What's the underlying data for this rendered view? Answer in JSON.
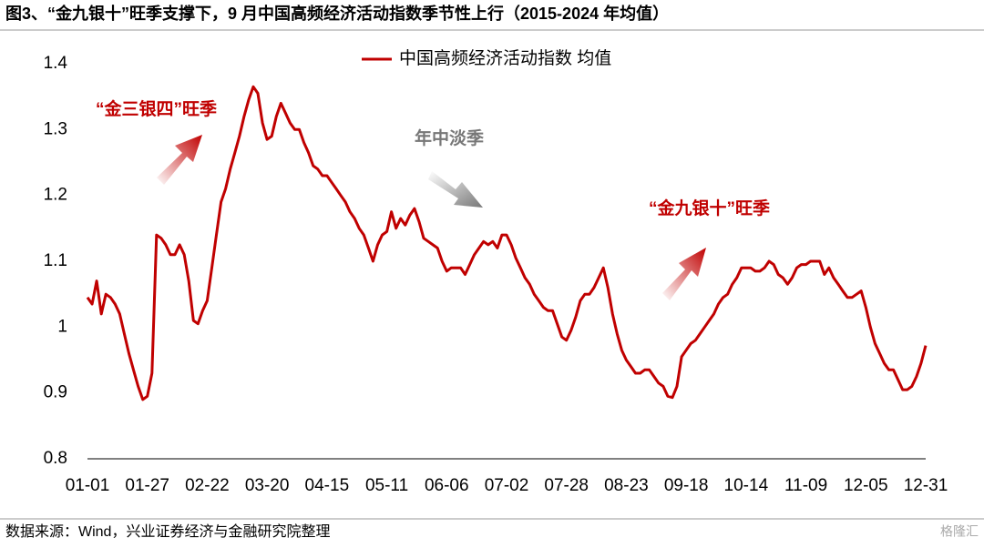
{
  "chart_data": {
    "type": "line",
    "title": "图3、“金九银十”旺季支撑下，9 月中国高频经济活动指数季节性上行（2015-2024 年均值）",
    "source": "数据来源：Wind，兴业证券经济与金融研究院整理",
    "watermark": "格隆汇",
    "annotations": [
      "“金三银四”旺季",
      "年中淡季",
      "“金九银十”旺季"
    ],
    "categories": [
      "01-01",
      null,
      null,
      null,
      null,
      null,
      null,
      null,
      null,
      null,
      null,
      null,
      null,
      "01-27",
      null,
      null,
      null,
      null,
      null,
      null,
      null,
      null,
      null,
      null,
      null,
      null,
      "02-22",
      null,
      null,
      null,
      null,
      null,
      null,
      null,
      null,
      null,
      null,
      null,
      null,
      "03-20",
      null,
      null,
      null,
      null,
      null,
      null,
      null,
      null,
      null,
      null,
      null,
      null,
      "04-15",
      null,
      null,
      null,
      null,
      null,
      null,
      null,
      null,
      null,
      null,
      null,
      null,
      "05-11",
      null,
      null,
      null,
      null,
      null,
      null,
      null,
      null,
      null,
      null,
      null,
      null,
      "06-06",
      null,
      null,
      null,
      null,
      null,
      null,
      null,
      null,
      null,
      null,
      null,
      null,
      "07-02",
      null,
      null,
      null,
      null,
      null,
      null,
      null,
      null,
      null,
      null,
      null,
      null,
      "07-28",
      null,
      null,
      null,
      null,
      null,
      null,
      null,
      null,
      null,
      null,
      null,
      null,
      "08-23",
      null,
      null,
      null,
      null,
      null,
      null,
      null,
      null,
      null,
      null,
      null,
      null,
      "09-18",
      null,
      null,
      null,
      null,
      null,
      null,
      null,
      null,
      null,
      null,
      null,
      null,
      "10-14",
      null,
      null,
      null,
      null,
      null,
      null,
      null,
      null,
      null,
      null,
      null,
      null,
      "11-09",
      null,
      null,
      null,
      null,
      null,
      null,
      null,
      null,
      null,
      null,
      null,
      null,
      "12-05",
      null,
      null,
      null,
      null,
      null,
      null,
      null,
      null,
      null,
      null,
      null,
      null,
      "12-31"
    ],
    "series": [
      {
        "name": "中国高频经济活动指数 均值",
        "color": "#c00000",
        "values": [
          1.045,
          1.035,
          1.07,
          1.02,
          1.05,
          1.045,
          1.035,
          1.02,
          0.99,
          0.96,
          0.935,
          0.91,
          0.89,
          0.895,
          0.93,
          1.14,
          1.135,
          1.125,
          1.11,
          1.11,
          1.125,
          1.11,
          1.07,
          1.01,
          1.005,
          1.025,
          1.04,
          1.09,
          1.14,
          1.19,
          1.21,
          1.24,
          1.265,
          1.29,
          1.32,
          1.345,
          1.365,
          1.355,
          1.31,
          1.285,
          1.29,
          1.32,
          1.34,
          1.325,
          1.31,
          1.3,
          1.3,
          1.28,
          1.265,
          1.245,
          1.24,
          1.23,
          1.23,
          1.22,
          1.21,
          1.2,
          1.19,
          1.175,
          1.165,
          1.15,
          1.14,
          1.12,
          1.1,
          1.125,
          1.14,
          1.145,
          1.175,
          1.15,
          1.165,
          1.155,
          1.17,
          1.18,
          1.16,
          1.135,
          1.13,
          1.125,
          1.12,
          1.1,
          1.085,
          1.09,
          1.09,
          1.09,
          1.08,
          1.095,
          1.11,
          1.12,
          1.13,
          1.125,
          1.13,
          1.12,
          1.14,
          1.14,
          1.125,
          1.105,
          1.09,
          1.075,
          1.065,
          1.05,
          1.04,
          1.03,
          1.025,
          1.025,
          1.005,
          0.985,
          0.98,
          0.995,
          1.015,
          1.04,
          1.05,
          1.05,
          1.06,
          1.075,
          1.09,
          1.06,
          1.02,
          0.99,
          0.965,
          0.95,
          0.94,
          0.93,
          0.93,
          0.935,
          0.935,
          0.925,
          0.915,
          0.91,
          0.895,
          0.893,
          0.91,
          0.955,
          0.965,
          0.975,
          0.98,
          0.99,
          1.0,
          1.01,
          1.02,
          1.035,
          1.045,
          1.05,
          1.065,
          1.075,
          1.09,
          1.09,
          1.09,
          1.085,
          1.085,
          1.09,
          1.1,
          1.095,
          1.08,
          1.075,
          1.065,
          1.075,
          1.09,
          1.095,
          1.095,
          1.1,
          1.1,
          1.1,
          1.08,
          1.09,
          1.075,
          1.065,
          1.055,
          1.045,
          1.045,
          1.05,
          1.055,
          1.03,
          1.0,
          0.975,
          0.96,
          0.945,
          0.935,
          0.935,
          0.92,
          0.905,
          0.905,
          0.91,
          0.925,
          0.945,
          0.972
        ]
      }
    ],
    "ylim": [
      0.8,
      1.4
    ],
    "yticks": [
      0.8,
      0.9,
      1,
      1.1,
      1.2,
      1.3,
      1.4
    ],
    "grid": false,
    "legend": "top"
  }
}
